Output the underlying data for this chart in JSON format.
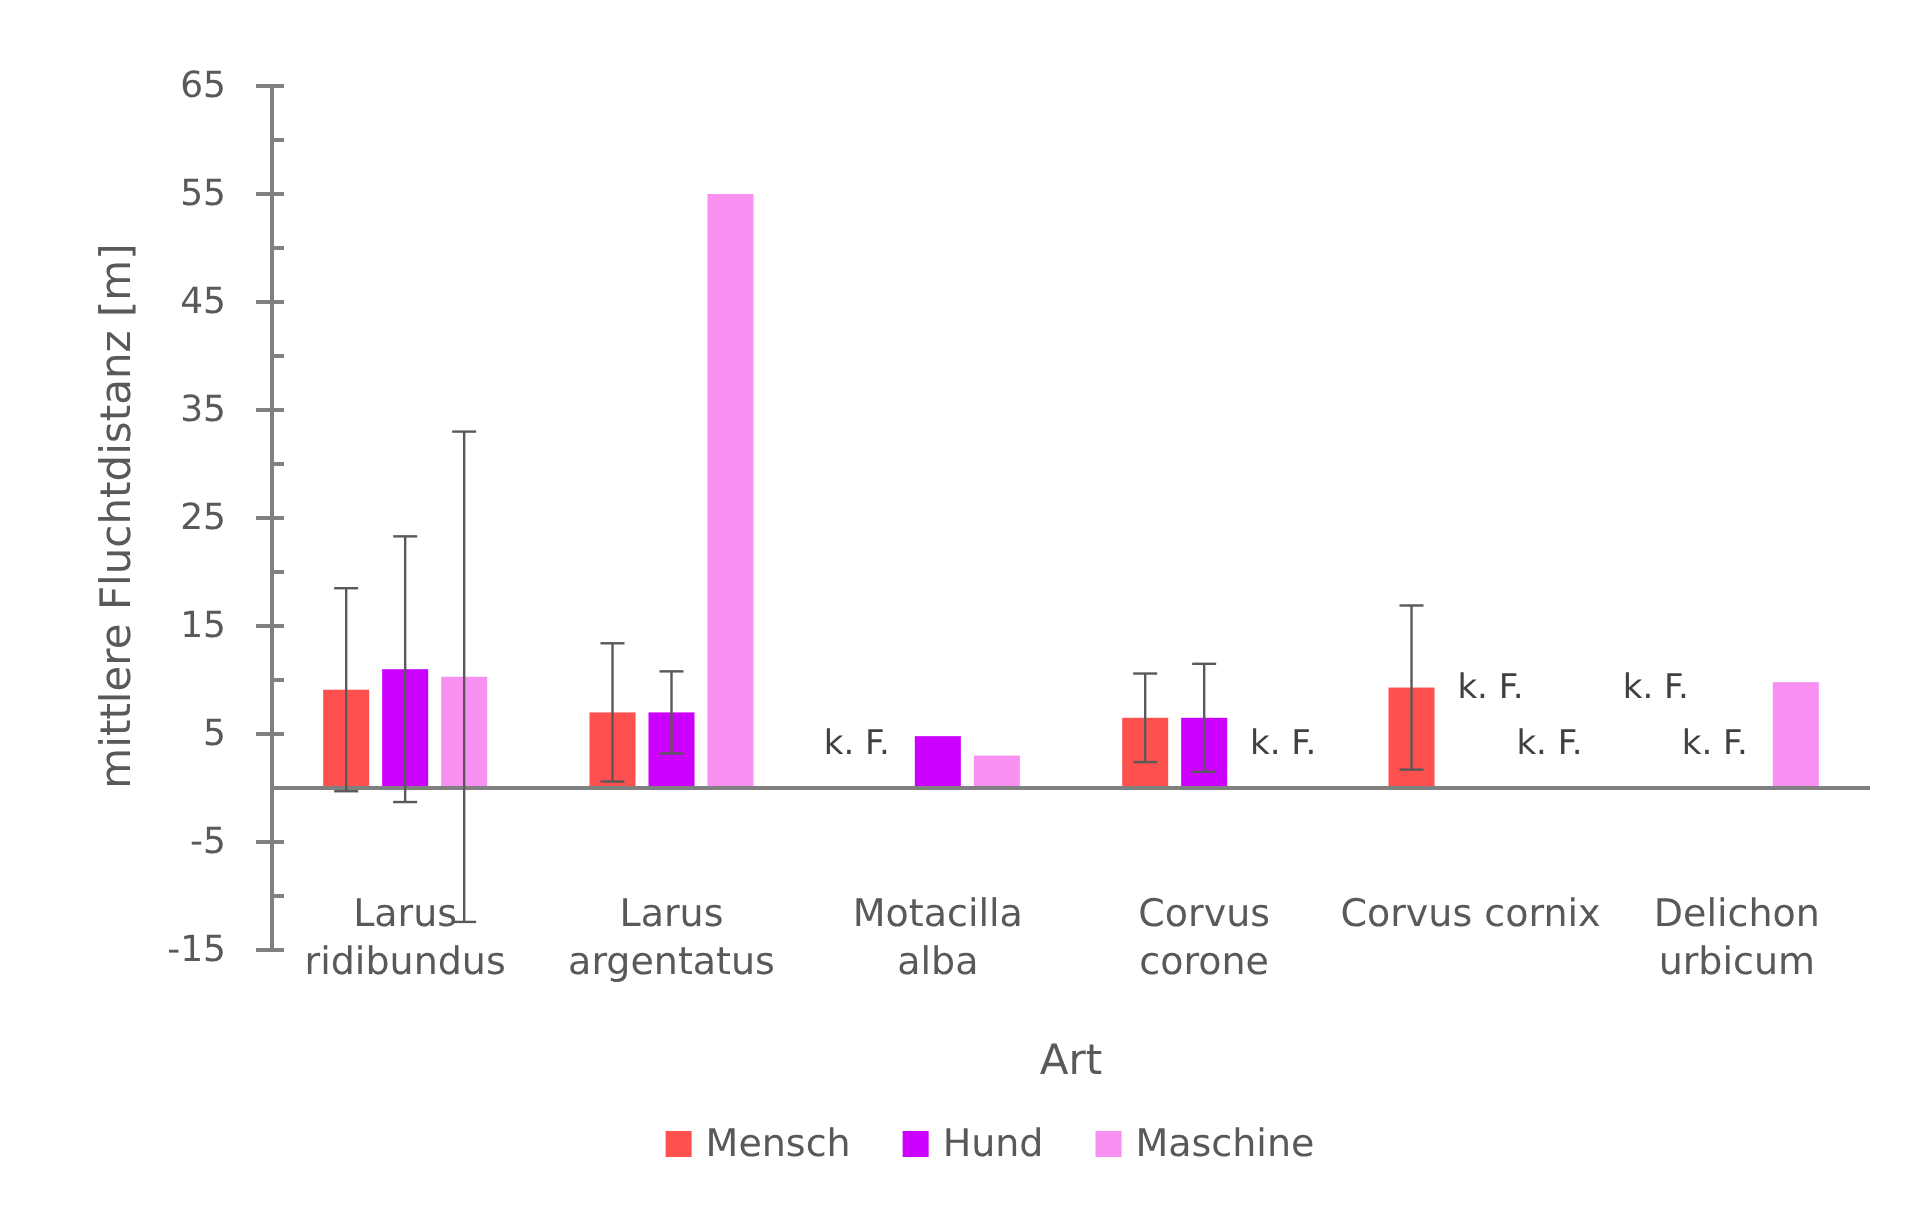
{
  "chart_data": {
    "type": "bar",
    "xlabel": "Art",
    "ylabel": "mittlere Fluchtdistanz [m]",
    "categories": [
      "Larus\nridibundus",
      "Larus\nargentatus",
      "Motacilla\nalba",
      "Corvus\ncorone",
      "Corvus cornix",
      "Delichon\nurbicum"
    ],
    "series": [
      {
        "name": "Mensch",
        "color": "#ff5050",
        "values": [
          9.1,
          7.0,
          null,
          6.5,
          9.3,
          null
        ],
        "errors": [
          9.4,
          6.4,
          null,
          4.1,
          7.6,
          null
        ],
        "value_labels": [
          null,
          null,
          "k. F.",
          null,
          null,
          "k. F."
        ]
      },
      {
        "name": "Hund",
        "color": "#cc00ff",
        "values": [
          11.0,
          7.0,
          4.8,
          6.5,
          null,
          null
        ],
        "errors": [
          12.3,
          3.8,
          null,
          5.0,
          null,
          null
        ],
        "value_labels": [
          null,
          null,
          null,
          null,
          "k. F.",
          "k. F."
        ]
      },
      {
        "name": "Maschine",
        "color": "#f790f0",
        "values": [
          10.3,
          55,
          3.0,
          null,
          null,
          9.8
        ],
        "errors": [
          22.7,
          null,
          null,
          null,
          null,
          null
        ],
        "value_labels": [
          null,
          null,
          null,
          "k. F.",
          "k. F.",
          null
        ]
      }
    ],
    "ylim": [
      -15,
      65
    ],
    "yticks": [
      -15,
      {
        "value": -10,
        "label": null
      },
      -5,
      5,
      {
        "value": 10,
        "label": null
      },
      15,
      {
        "value": 20,
        "label": null
      },
      25,
      {
        "value": 30,
        "label": null
      },
      35,
      {
        "value": 40,
        "label": null
      },
      45,
      {
        "value": 50,
        "label": null
      },
      55,
      {
        "value": 60,
        "label": null
      },
      65
    ],
    "legend": "bottom"
  }
}
